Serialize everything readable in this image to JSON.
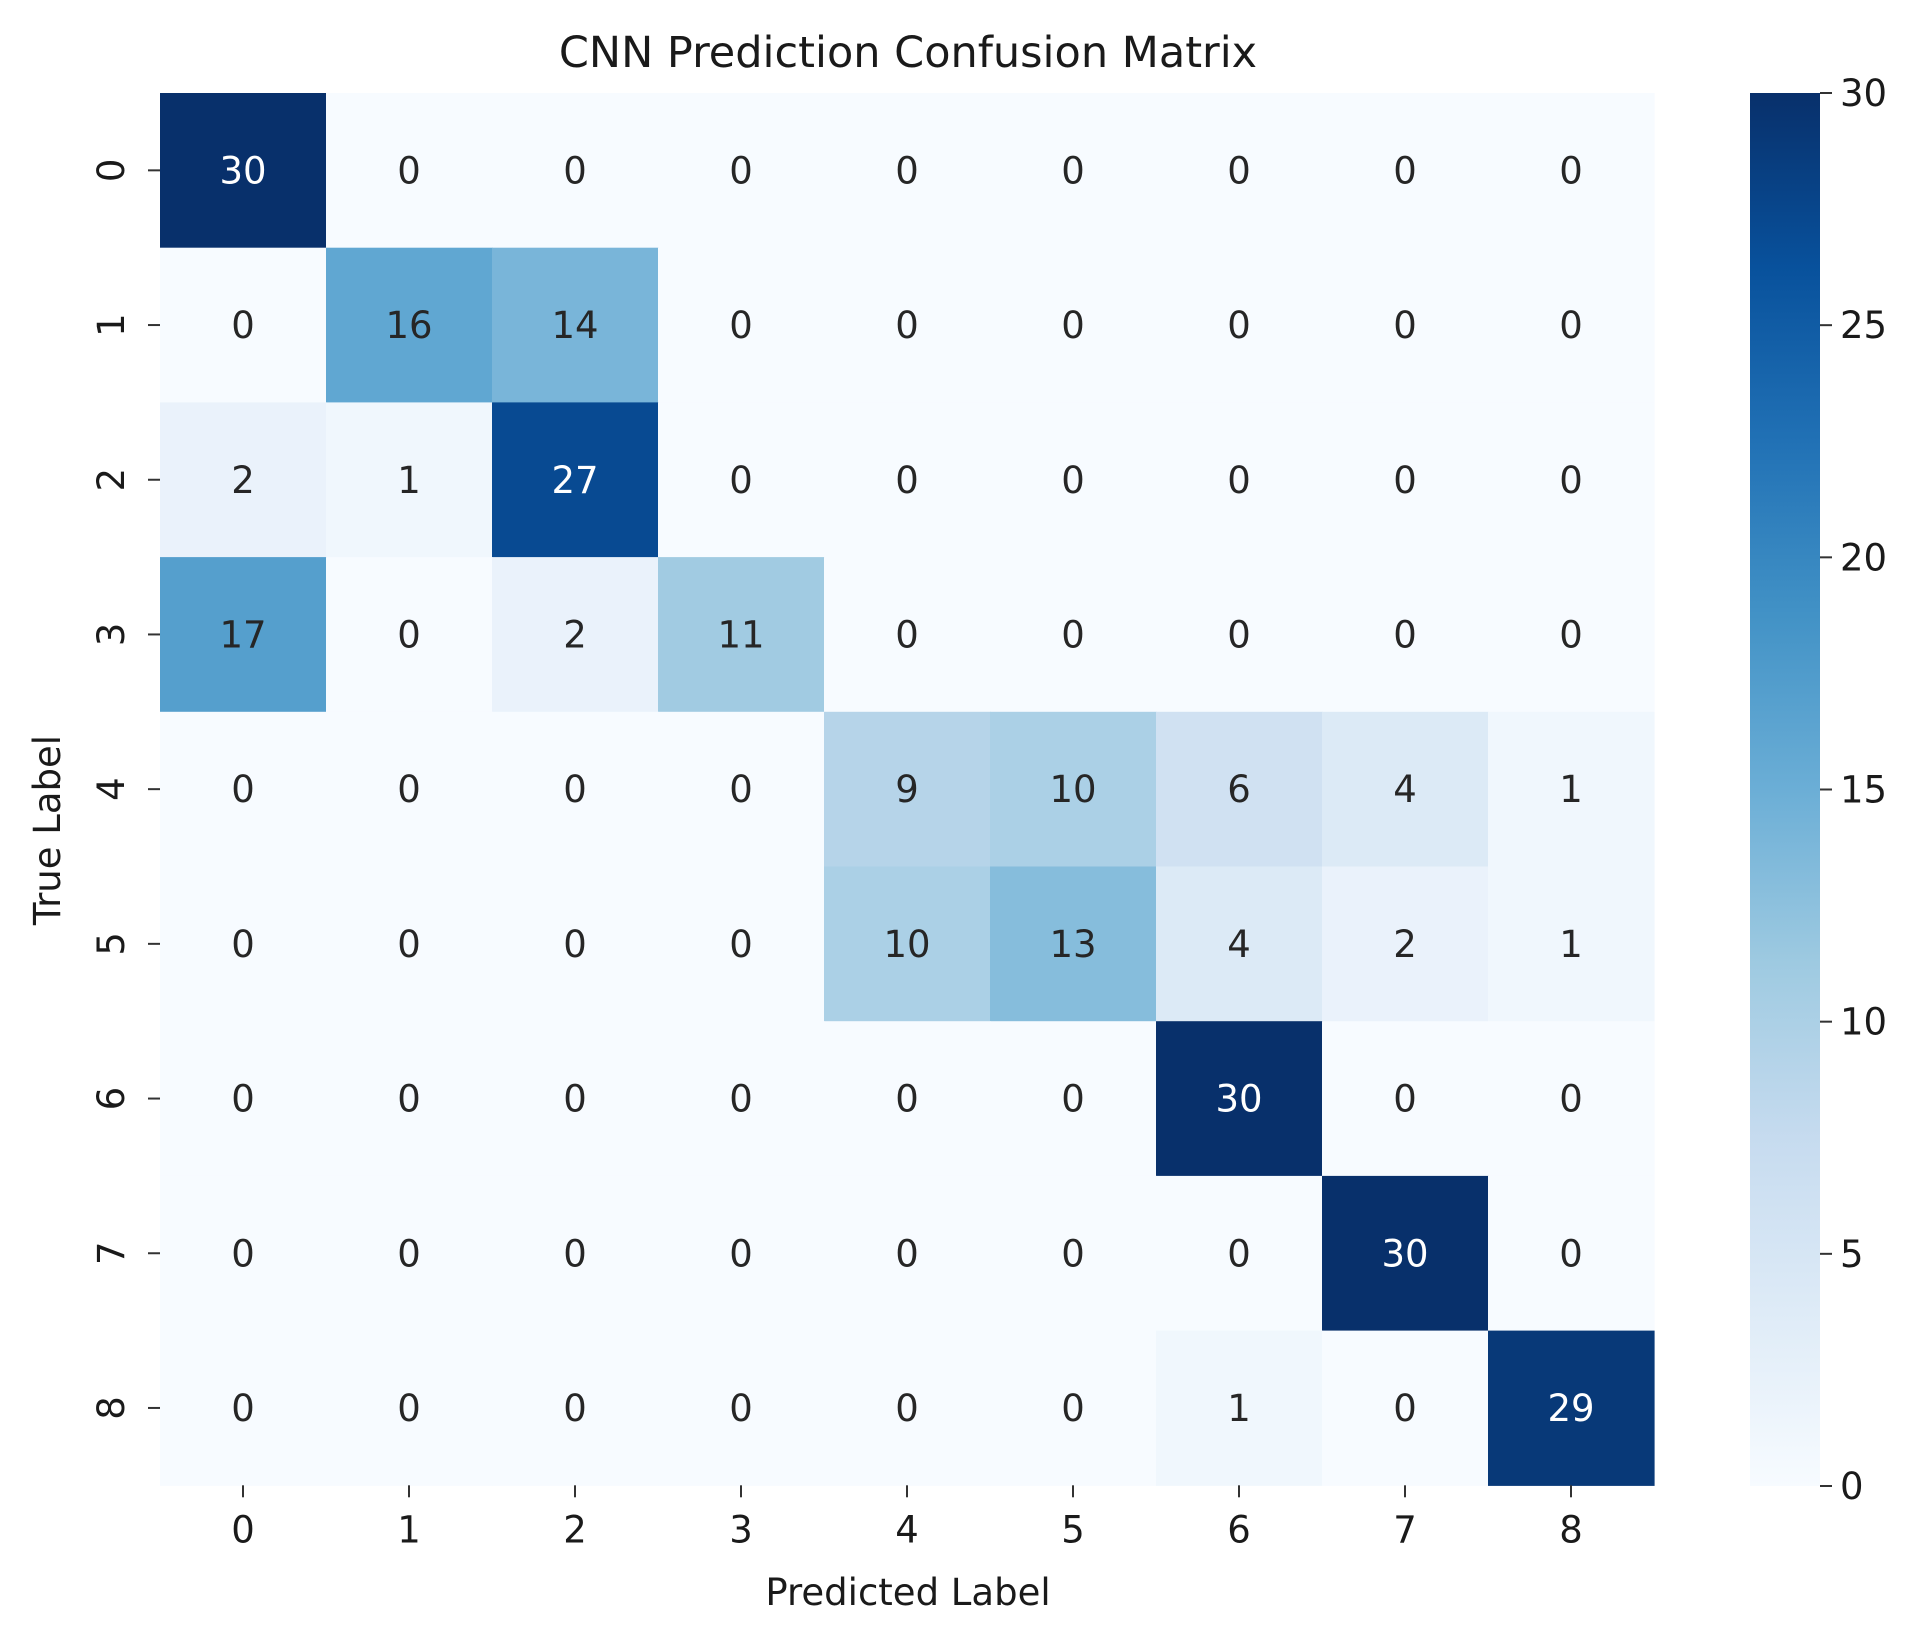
{
  "chart_data": {
    "type": "heatmap",
    "title": "CNN Prediction Confusion Matrix",
    "xlabel": "Predicted Label",
    "ylabel": "True Label",
    "x_categories": [
      "0",
      "1",
      "2",
      "3",
      "4",
      "5",
      "6",
      "7",
      "8"
    ],
    "y_categories": [
      "0",
      "1",
      "2",
      "3",
      "4",
      "5",
      "6",
      "7",
      "8"
    ],
    "values": [
      [
        30,
        0,
        0,
        0,
        0,
        0,
        0,
        0,
        0
      ],
      [
        0,
        16,
        14,
        0,
        0,
        0,
        0,
        0,
        0
      ],
      [
        2,
        1,
        27,
        0,
        0,
        0,
        0,
        0,
        0
      ],
      [
        17,
        0,
        2,
        11,
        0,
        0,
        0,
        0,
        0
      ],
      [
        0,
        0,
        0,
        0,
        9,
        10,
        6,
        4,
        1
      ],
      [
        0,
        0,
        0,
        0,
        10,
        13,
        4,
        2,
        1
      ],
      [
        0,
        0,
        0,
        0,
        0,
        0,
        30,
        0,
        0
      ],
      [
        0,
        0,
        0,
        0,
        0,
        0,
        0,
        30,
        0
      ],
      [
        0,
        0,
        0,
        0,
        0,
        0,
        1,
        0,
        29
      ]
    ],
    "colorbar": {
      "min": 0,
      "max": 30,
      "ticks": [
        "0",
        "5",
        "10",
        "15",
        "20",
        "25",
        "30"
      ],
      "colormap": "Blues"
    },
    "colormap_stops": [
      "#f7fbff",
      "#deebf7",
      "#c6dbef",
      "#9ecae1",
      "#6baed6",
      "#4292c6",
      "#2171b5",
      "#08519c",
      "#08306b"
    ],
    "annotation_colors": {
      "light": "#ffffff",
      "dark": "#262626"
    }
  }
}
